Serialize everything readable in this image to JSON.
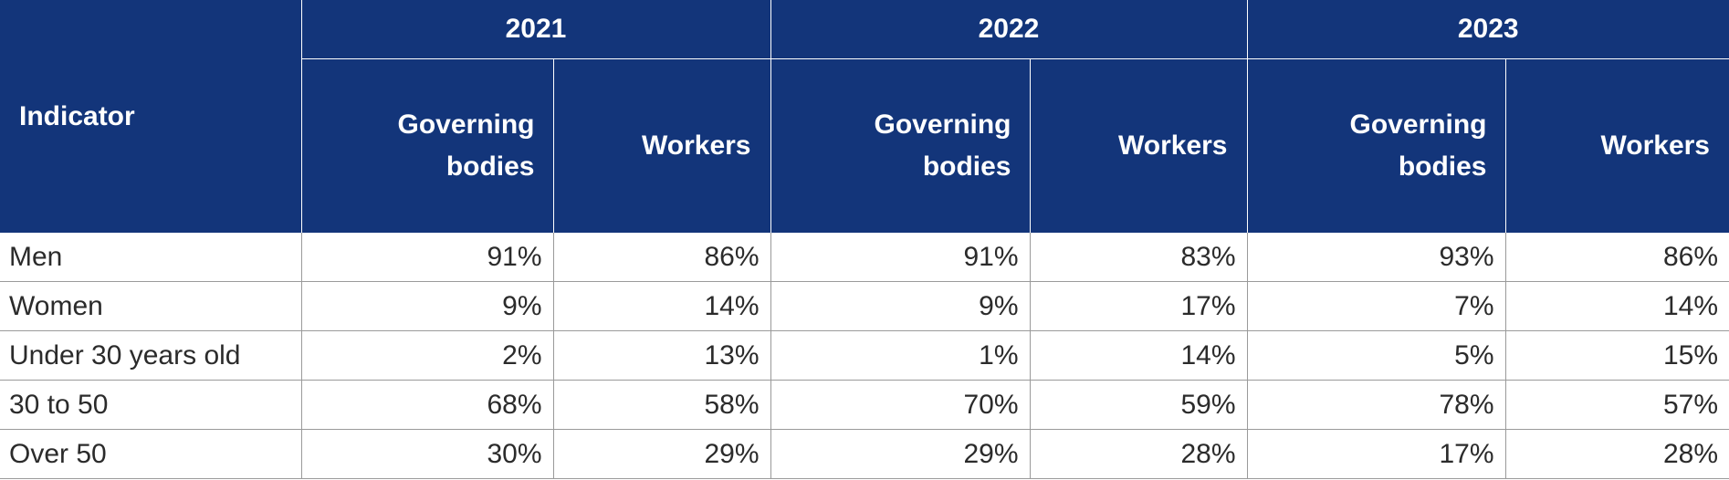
{
  "table": {
    "indicator_header": "Indicator",
    "years": [
      "2021",
      "2022",
      "2023"
    ],
    "sub_headers": {
      "governing_line1": "Governing",
      "governing_line2": "bodies",
      "workers": "Workers"
    },
    "rows": [
      {
        "label": "Men",
        "values": [
          "91%",
          "86%",
          "91%",
          "83%",
          "93%",
          "86%"
        ]
      },
      {
        "label": "Women",
        "values": [
          "9%",
          "14%",
          "9%",
          "17%",
          "7%",
          "14%"
        ]
      },
      {
        "label": "Under 30 years old",
        "values": [
          "2%",
          "13%",
          "1%",
          "14%",
          "5%",
          "15%"
        ]
      },
      {
        "label": "30 to 50",
        "values": [
          "68%",
          "58%",
          "70%",
          "59%",
          "78%",
          "57%"
        ]
      },
      {
        "label": "Over 50",
        "values": [
          "30%",
          "29%",
          "29%",
          "28%",
          "17%",
          "28%"
        ]
      }
    ]
  },
  "colors": {
    "header_background": "#13357a",
    "header_text": "#ffffff",
    "body_text": "#2b2b2b",
    "grid_line": "#9a9a9a"
  }
}
